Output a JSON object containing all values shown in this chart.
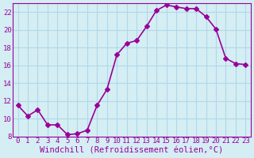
{
  "x": [
    0,
    1,
    2,
    3,
    4,
    5,
    6,
    7,
    8,
    9,
    10,
    11,
    12,
    13,
    14,
    15,
    16,
    17,
    18,
    19,
    20,
    21,
    22,
    23
  ],
  "y": [
    11.5,
    10.3,
    11.0,
    9.3,
    9.3,
    8.2,
    8.3,
    8.7,
    11.5,
    13.3,
    17.2,
    18.5,
    18.8,
    20.4,
    22.2,
    22.8,
    22.6,
    22.4,
    22.4,
    21.5,
    20.1,
    16.8,
    16.2,
    16.1
  ],
  "line_color": "#990099",
  "marker": "D",
  "markersize": 3,
  "linewidth": 1.2,
  "xlabel": "Windchill (Refroidissement éolien,°C)",
  "xlabel_fontsize": 7.5,
  "background_color": "#d4eef4",
  "grid_color": "#b0d8e8",
  "xlim": [
    -0.5,
    23.5
  ],
  "ylim": [
    8,
    23
  ],
  "yticks": [
    8,
    10,
    12,
    14,
    16,
    18,
    20,
    22
  ],
  "xtick_labels": [
    "0",
    "1",
    "2",
    "3",
    "4",
    "5",
    "6",
    "7",
    "8",
    "9",
    "10",
    "11",
    "12",
    "13",
    "14",
    "15",
    "16",
    "17",
    "18",
    "19",
    "20",
    "21",
    "22",
    "23"
  ],
  "tick_fontsize": 6.5,
  "tick_color": "#990099"
}
